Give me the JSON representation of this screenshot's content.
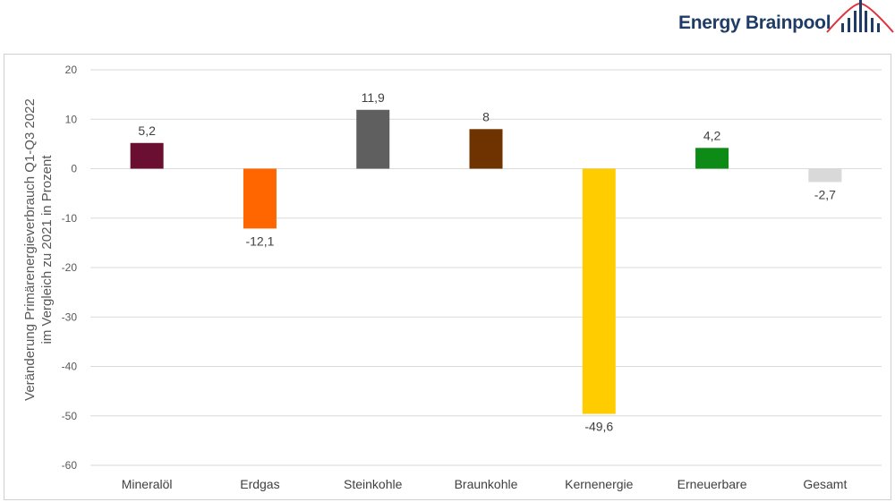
{
  "brand": {
    "name": "Energy Brainpool",
    "logo_icon": "bar-arc-logo-icon",
    "text_color": "#1f3c66",
    "accent_color": "#e0323c"
  },
  "chart_data": {
    "type": "bar",
    "categories": [
      "Mineralöl",
      "Erdgas",
      "Steinkohle",
      "Braunkohle",
      "Kernenergie",
      "Erneuerbare",
      "Gesamt"
    ],
    "values": [
      5.2,
      -12.1,
      11.9,
      8,
      -49.6,
      4.2,
      -2.7
    ],
    "value_labels": [
      "5,2",
      "-12,1",
      "11,9",
      "8",
      "-49,6",
      "4,2",
      "-2,7"
    ],
    "colors": [
      "#6b0f32",
      "#ff6600",
      "#5f5f5f",
      "#6e3300",
      "#ffcc00",
      "#0e8a16",
      "#d9d9d9"
    ],
    "ylabel_line1": "Veränderung Primärenergieverbrauch  Q1-Q3 2022",
    "ylabel_line2": "im Vergleich zu 2021 in Prozent",
    "ylim": [
      -60,
      20
    ],
    "yticks": [
      20,
      10,
      0,
      -10,
      -20,
      -30,
      -40,
      -50,
      -60
    ],
    "grid": true,
    "legend": "none"
  }
}
